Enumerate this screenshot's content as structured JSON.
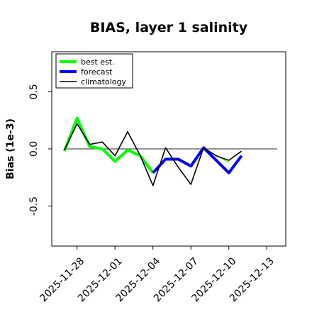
{
  "chart_data": {
    "type": "line",
    "title": "BIAS, layer 1 salinity",
    "xlabel": "",
    "ylabel": "Bias (1e-3)",
    "ylim": [
      -0.85,
      0.85
    ],
    "xlim": [
      "2025-11-26T00",
      "2025-12-14T12"
    ],
    "yticks": [
      -0.5,
      0.0,
      0.5
    ],
    "ytick_labels": [
      "-0.5",
      "0.0",
      "0.5"
    ],
    "xticks": [
      "2025-11-28",
      "2025-12-01",
      "2025-12-04",
      "2025-12-07",
      "2025-12-10",
      "2025-12-13"
    ],
    "xtick_labels": [
      "2025-11-28",
      "2025-12-01",
      "2025-12-04",
      "2025-12-07",
      "2025-12-10",
      "2025-12-13"
    ],
    "xtick_highlight": "2025-12-04",
    "zero_line": 0.0,
    "grid": false,
    "legend": "top-left",
    "series": [
      {
        "name": "best est.",
        "color": "#00ff00",
        "x": [
          "2025-11-27",
          "2025-11-28",
          "2025-11-29",
          "2025-11-30",
          "2025-12-01",
          "2025-12-02",
          "2025-12-03",
          "2025-12-04"
        ],
        "values": [
          -0.02,
          0.27,
          0.02,
          0.0,
          -0.11,
          -0.01,
          -0.06,
          -0.21
        ]
      },
      {
        "name": "forecast",
        "color": "#0000ff",
        "x": [
          "2025-12-04",
          "2025-12-05",
          "2025-12-06",
          "2025-12-07",
          "2025-12-08",
          "2025-12-09",
          "2025-12-10",
          "2025-12-11"
        ],
        "values": [
          -0.21,
          -0.09,
          -0.09,
          -0.15,
          0.01,
          -0.1,
          -0.21,
          -0.06
        ]
      },
      {
        "name": "climatology",
        "color": "#000000",
        "x": [
          "2025-11-27",
          "2025-11-28",
          "2025-11-29",
          "2025-11-30",
          "2025-12-01",
          "2025-12-02",
          "2025-12-03",
          "2025-12-04",
          "2025-12-05",
          "2025-12-06",
          "2025-12-07",
          "2025-12-08",
          "2025-12-09",
          "2025-12-10",
          "2025-12-11"
        ],
        "values": [
          -0.01,
          0.22,
          0.04,
          0.06,
          -0.06,
          0.15,
          -0.06,
          -0.32,
          0.01,
          -0.16,
          -0.31,
          0.01,
          -0.06,
          -0.1,
          -0.02
        ]
      }
    ],
    "aux_series": [
      {
        "color": "#00ff00",
        "x": [
          "2025-12-08",
          "2025-12-10"
        ],
        "values": [
          0.01,
          -0.12
        ]
      },
      {
        "color": "#0000ff",
        "x": [
          "2025-12-08",
          "2025-12-10"
        ],
        "values": [
          0.01,
          -0.2
        ]
      }
    ]
  },
  "colors": {
    "highlight_tick": "#228b22",
    "zero_line": "#555555"
  }
}
